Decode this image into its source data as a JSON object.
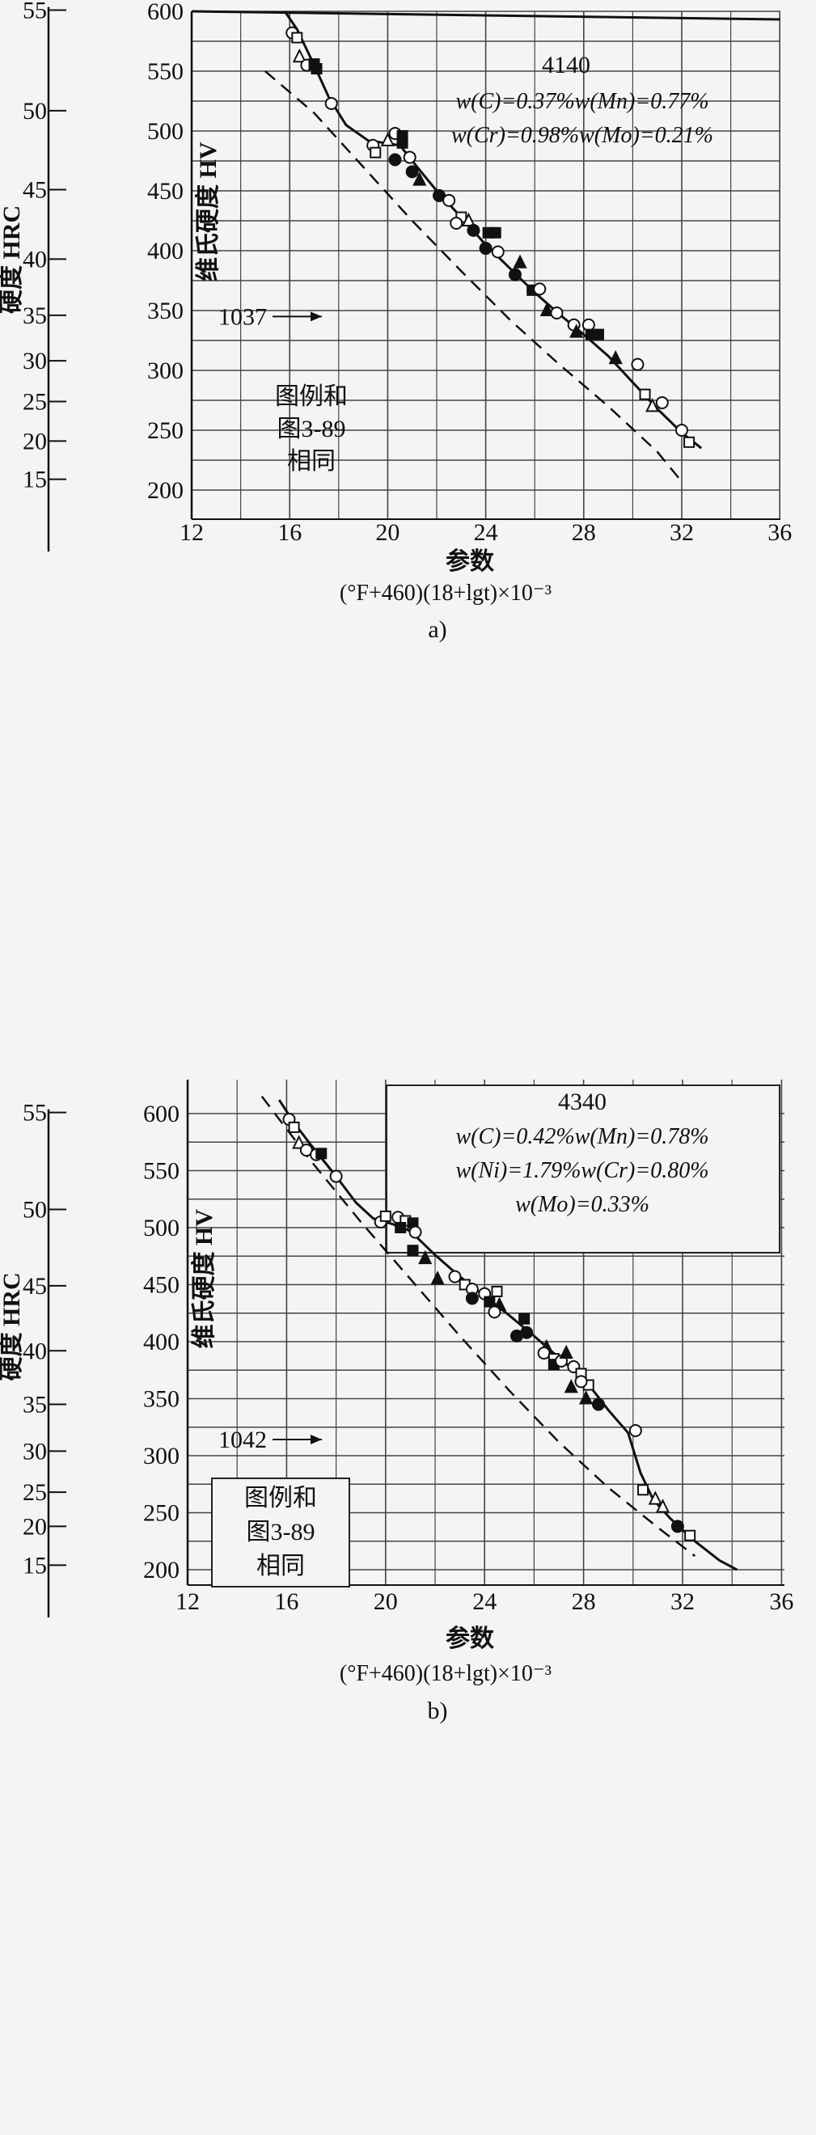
{
  "chart_data": [
    {
      "type": "scatter",
      "panel_label": "a)",
      "steel": "4140",
      "composition": [
        "w(C)=0.37%w(Mn)=0.77%",
        "w(Cr)=0.98%w(Mo)=0.21%"
      ],
      "xlabel": "参数",
      "xlabel_formula": "(°F+460)(18+lgt)×10⁻³",
      "ylabel_left": "硬度 HRC",
      "ylabel_right": "维氏硬度 HV",
      "xlim": [
        12,
        36
      ],
      "x_ticks": [
        "12",
        "16",
        "20",
        "24",
        "28",
        "32",
        "36"
      ],
      "hv_ticks": [
        "600",
        "550",
        "500",
        "450",
        "400",
        "350",
        "300",
        "250",
        "200"
      ],
      "hrc_ticks": [
        {
          "label": "55",
          "hv": 601
        },
        {
          "label": "50",
          "hv": 517
        },
        {
          "label": "45",
          "hv": 451
        },
        {
          "label": "40",
          "hv": 393
        },
        {
          "label": "35",
          "hv": 346
        },
        {
          "label": "30",
          "hv": 308
        },
        {
          "label": "25",
          "hv": 274
        },
        {
          "label": "20",
          "hv": 241
        },
        {
          "label": "15",
          "hv": 209
        }
      ],
      "legend_note": [
        "图例和",
        "图3-89",
        "相同"
      ],
      "comparison_label": "1037",
      "fit_curve": [
        [
          15.8,
          600
        ],
        [
          16.3,
          585
        ],
        [
          17,
          555
        ],
        [
          17.6,
          528
        ],
        [
          18.3,
          505
        ],
        [
          19.2,
          492
        ],
        [
          19.9,
          490
        ],
        [
          20.5,
          488
        ],
        [
          21.2,
          470
        ],
        [
          22,
          450
        ],
        [
          23,
          428
        ],
        [
          24,
          405
        ],
        [
          25,
          385
        ],
        [
          26,
          365
        ],
        [
          27,
          347
        ],
        [
          28,
          330
        ],
        [
          29,
          312
        ],
        [
          30,
          290
        ],
        [
          31,
          268
        ],
        [
          32,
          248
        ],
        [
          32.8,
          235
        ]
      ],
      "comparison_curve": [
        [
          15,
          550
        ],
        [
          17,
          515
        ],
        [
          19,
          470
        ],
        [
          21,
          425
        ],
        [
          23,
          383
        ],
        [
          25,
          342
        ],
        [
          27,
          305
        ],
        [
          29,
          270
        ],
        [
          31,
          232
        ],
        [
          32,
          207
        ]
      ],
      "points": [
        {
          "x": 16.1,
          "y": 582,
          "m": "circle-open"
        },
        {
          "x": 16.3,
          "y": 578,
          "m": "square-open"
        },
        {
          "x": 16.4,
          "y": 562,
          "m": "triangle-open"
        },
        {
          "x": 16.7,
          "y": 555,
          "m": "circle-open"
        },
        {
          "x": 17,
          "y": 556,
          "m": "square-filled"
        },
        {
          "x": 17.1,
          "y": 552,
          "m": "square-filled"
        },
        {
          "x": 17.7,
          "y": 523,
          "m": "circle-open"
        },
        {
          "x": 19.4,
          "y": 488,
          "m": "circle-open"
        },
        {
          "x": 19.5,
          "y": 482,
          "m": "square-open"
        },
        {
          "x": 20,
          "y": 492,
          "m": "triangle-open"
        },
        {
          "x": 20.3,
          "y": 498,
          "m": "circle-open"
        },
        {
          "x": 20.6,
          "y": 496,
          "m": "square-filled"
        },
        {
          "x": 20.6,
          "y": 490,
          "m": "square-filled"
        },
        {
          "x": 20.9,
          "y": 478,
          "m": "circle-open"
        },
        {
          "x": 20.3,
          "y": 476,
          "m": "circle-filled"
        },
        {
          "x": 21,
          "y": 466,
          "m": "circle-filled"
        },
        {
          "x": 21.3,
          "y": 459,
          "m": "triangle-filled"
        },
        {
          "x": 22.1,
          "y": 446,
          "m": "circle-filled"
        },
        {
          "x": 22.5,
          "y": 442,
          "m": "circle-open"
        },
        {
          "x": 23,
          "y": 428,
          "m": "square-open"
        },
        {
          "x": 22.8,
          "y": 423,
          "m": "circle-open"
        },
        {
          "x": 23.3,
          "y": 425,
          "m": "triangle-open"
        },
        {
          "x": 23.5,
          "y": 417,
          "m": "circle-filled"
        },
        {
          "x": 24.1,
          "y": 415,
          "m": "square-filled"
        },
        {
          "x": 24.4,
          "y": 415,
          "m": "square-filled"
        },
        {
          "x": 24,
          "y": 402,
          "m": "circle-filled"
        },
        {
          "x": 24.5,
          "y": 399,
          "m": "circle-open"
        },
        {
          "x": 25.4,
          "y": 390,
          "m": "triangle-filled"
        },
        {
          "x": 25.2,
          "y": 380,
          "m": "circle-filled"
        },
        {
          "x": 25.9,
          "y": 367,
          "m": "square-filled"
        },
        {
          "x": 26.2,
          "y": 368,
          "m": "circle-open"
        },
        {
          "x": 26.5,
          "y": 350,
          "m": "triangle-filled"
        },
        {
          "x": 26.9,
          "y": 348,
          "m": "circle-open"
        },
        {
          "x": 27.6,
          "y": 338,
          "m": "circle-open"
        },
        {
          "x": 27.7,
          "y": 332,
          "m": "triangle-filled"
        },
        {
          "x": 28.2,
          "y": 338,
          "m": "circle-open"
        },
        {
          "x": 28.3,
          "y": 330,
          "m": "square-filled"
        },
        {
          "x": 28.6,
          "y": 330,
          "m": "square-filled"
        },
        {
          "x": 29.3,
          "y": 310,
          "m": "triangle-filled"
        },
        {
          "x": 30.2,
          "y": 305,
          "m": "circle-open"
        },
        {
          "x": 30.5,
          "y": 280,
          "m": "square-open"
        },
        {
          "x": 30.8,
          "y": 270,
          "m": "triangle-open"
        },
        {
          "x": 31.2,
          "y": 273,
          "m": "circle-open"
        },
        {
          "x": 32,
          "y": 250,
          "m": "circle-open"
        },
        {
          "x": 32.3,
          "y": 240,
          "m": "square-open"
        }
      ]
    },
    {
      "type": "scatter",
      "panel_label": "b)",
      "steel": "4340",
      "composition": [
        "w(C)=0.42%w(Mn)=0.78%",
        "w(Ni)=1.79%w(Cr)=0.80%",
        "w(Mo)=0.33%"
      ],
      "xlabel": "参数",
      "xlabel_formula": "(°F+460)(18+lgt)×10⁻³",
      "ylabel_left": "硬度 HRC",
      "ylabel_right": "维氏硬度 HV",
      "xlim": [
        12,
        36
      ],
      "x_ticks": [
        "12",
        "16",
        "20",
        "24",
        "28",
        "32",
        "36"
      ],
      "hv_ticks": [
        "600",
        "550",
        "500",
        "450",
        "400",
        "350",
        "300",
        "250",
        "200"
      ],
      "hrc_ticks": [
        {
          "label": "55",
          "hv": 601
        },
        {
          "label": "50",
          "hv": 516
        },
        {
          "label": "45",
          "hv": 449
        },
        {
          "label": "40",
          "hv": 392
        },
        {
          "label": "35",
          "hv": 345
        },
        {
          "label": "30",
          "hv": 304
        },
        {
          "label": "25",
          "hv": 268
        },
        {
          "label": "20",
          "hv": 238
        },
        {
          "label": "15",
          "hv": 204
        }
      ],
      "legend_note": [
        "图例和",
        "图3-89",
        "相同"
      ],
      "comparison_label": "1042",
      "fit_curve": [
        [
          15.7,
          612
        ],
        [
          16.3,
          592
        ],
        [
          17,
          572
        ],
        [
          18,
          545
        ],
        [
          18.8,
          522
        ],
        [
          19.5,
          508
        ],
        [
          20.3,
          503
        ],
        [
          21,
          497
        ],
        [
          22,
          476
        ],
        [
          23,
          457
        ],
        [
          24,
          440
        ],
        [
          25,
          423
        ],
        [
          26,
          405
        ],
        [
          27,
          386
        ],
        [
          28,
          368
        ],
        [
          29,
          340
        ],
        [
          29.8,
          320
        ],
        [
          30.3,
          285
        ],
        [
          30.8,
          262
        ],
        [
          31.5,
          245
        ],
        [
          32.5,
          225
        ],
        [
          33.5,
          208
        ],
        [
          34.2,
          200
        ]
      ],
      "comparison_curve": [
        [
          15,
          615
        ],
        [
          17,
          558
        ],
        [
          19,
          505
        ],
        [
          21,
          455
        ],
        [
          23,
          405
        ],
        [
          25,
          357
        ],
        [
          27,
          312
        ],
        [
          29,
          272
        ],
        [
          31,
          237
        ],
        [
          32.5,
          212
        ]
      ],
      "points": [
        {
          "x": 16.1,
          "y": 595,
          "m": "circle-open"
        },
        {
          "x": 16.3,
          "y": 588,
          "m": "square-open"
        },
        {
          "x": 16.5,
          "y": 574,
          "m": "triangle-open"
        },
        {
          "x": 16.8,
          "y": 568,
          "m": "circle-open"
        },
        {
          "x": 17.2,
          "y": 564,
          "m": "circle-open"
        },
        {
          "x": 17.4,
          "y": 565,
          "m": "square-filled"
        },
        {
          "x": 18,
          "y": 545,
          "m": "circle-open"
        },
        {
          "x": 19.8,
          "y": 505,
          "m": "circle-open"
        },
        {
          "x": 20,
          "y": 510,
          "m": "square-open"
        },
        {
          "x": 20.5,
          "y": 509,
          "m": "circle-open"
        },
        {
          "x": 20.8,
          "y": 506,
          "m": "square-open"
        },
        {
          "x": 20.6,
          "y": 500,
          "m": "square-filled"
        },
        {
          "x": 21.1,
          "y": 504,
          "m": "square-filled"
        },
        {
          "x": 21.2,
          "y": 496,
          "m": "circle-open"
        },
        {
          "x": 21.1,
          "y": 480,
          "m": "square-filled"
        },
        {
          "x": 21.6,
          "y": 473,
          "m": "triangle-filled"
        },
        {
          "x": 22.1,
          "y": 455,
          "m": "triangle-filled"
        },
        {
          "x": 22.8,
          "y": 457,
          "m": "circle-open"
        },
        {
          "x": 23.2,
          "y": 450,
          "m": "square-open"
        },
        {
          "x": 23.5,
          "y": 446,
          "m": "circle-open"
        },
        {
          "x": 23.5,
          "y": 438,
          "m": "circle-filled"
        },
        {
          "x": 24,
          "y": 442,
          "m": "circle-open"
        },
        {
          "x": 24.2,
          "y": 435,
          "m": "square-filled"
        },
        {
          "x": 24.5,
          "y": 444,
          "m": "square-open"
        },
        {
          "x": 24.6,
          "y": 432,
          "m": "triangle-filled"
        },
        {
          "x": 24.4,
          "y": 426,
          "m": "circle-open"
        },
        {
          "x": 25.6,
          "y": 420,
          "m": "square-filled"
        },
        {
          "x": 25.3,
          "y": 405,
          "m": "circle-filled"
        },
        {
          "x": 25.7,
          "y": 408,
          "m": "circle-filled"
        },
        {
          "x": 26.5,
          "y": 395,
          "m": "triangle-filled"
        },
        {
          "x": 26.4,
          "y": 390,
          "m": "circle-open"
        },
        {
          "x": 26.8,
          "y": 385,
          "m": "square-open"
        },
        {
          "x": 26.8,
          "y": 380,
          "m": "square-filled"
        },
        {
          "x": 27.1,
          "y": 383,
          "m": "circle-open"
        },
        {
          "x": 27.3,
          "y": 390,
          "m": "triangle-filled"
        },
        {
          "x": 27.6,
          "y": 378,
          "m": "circle-open"
        },
        {
          "x": 27.9,
          "y": 372,
          "m": "square-open"
        },
        {
          "x": 28.2,
          "y": 362,
          "m": "square-open"
        },
        {
          "x": 27.9,
          "y": 365,
          "m": "circle-open"
        },
        {
          "x": 27.5,
          "y": 360,
          "m": "triangle-filled"
        },
        {
          "x": 28.1,
          "y": 350,
          "m": "triangle-filled"
        },
        {
          "x": 28.6,
          "y": 345,
          "m": "circle-filled"
        },
        {
          "x": 30.1,
          "y": 322,
          "m": "circle-open"
        },
        {
          "x": 30.4,
          "y": 270,
          "m": "square-open"
        },
        {
          "x": 30.9,
          "y": 262,
          "m": "triangle-open"
        },
        {
          "x": 31.2,
          "y": 255,
          "m": "triangle-open"
        },
        {
          "x": 31.8,
          "y": 238,
          "m": "circle-filled"
        },
        {
          "x": 32.3,
          "y": 230,
          "m": "square-open"
        }
      ]
    }
  ]
}
